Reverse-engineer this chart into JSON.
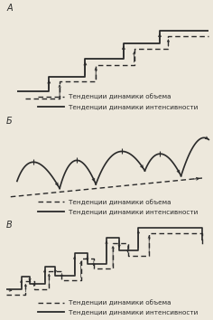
{
  "title_A": "А",
  "title_B": "Б",
  "title_C": "В",
  "legend_dashed": "Тенденции динамики объема",
  "legend_solid": "Тенденции динамики интенсивности",
  "bg_color": "#ede8dc",
  "line_color": "#2a2a2a",
  "font_size": 5.2
}
